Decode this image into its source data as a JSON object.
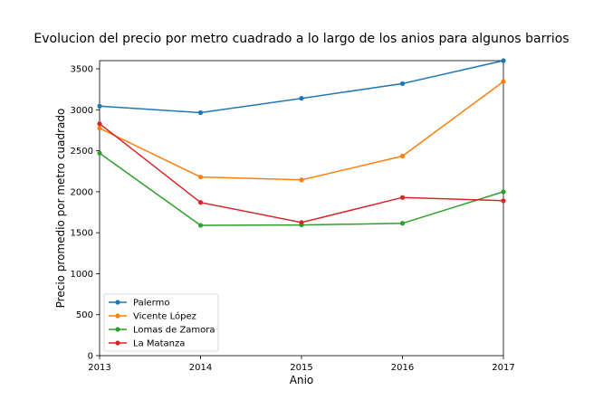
{
  "chart_data": {
    "type": "line",
    "title": "Evolucion del precio por metro cuadrado a lo largo de los anios para algunos barrios",
    "xlabel": "Anio",
    "ylabel": "Precio promedio por metro cuadrado",
    "x": [
      2013,
      2014,
      2015,
      2016,
      2017
    ],
    "xlim": [
      2013,
      2017
    ],
    "ylim": [
      0,
      3600
    ],
    "xticks": [
      "2013",
      "2014",
      "2015",
      "2016",
      "2017"
    ],
    "yticks": [
      "0",
      "500",
      "1000",
      "1500",
      "2000",
      "2500",
      "3000",
      "3500"
    ],
    "grid": false,
    "legend_position": "lower-left",
    "series": [
      {
        "name": "Palermo",
        "color": "#1f77b4",
        "values": [
          3045,
          2965,
          3140,
          3320,
          3600
        ]
      },
      {
        "name": "Vicente López",
        "color": "#ff7f0e",
        "values": [
          2775,
          2180,
          2145,
          2435,
          3345
        ]
      },
      {
        "name": "Lomas de Zamora",
        "color": "#2ca02c",
        "values": [
          2470,
          1590,
          1595,
          1615,
          2000
        ]
      },
      {
        "name": "La Matanza",
        "color": "#d62728",
        "values": [
          2830,
          1870,
          1625,
          1930,
          1890
        ]
      }
    ]
  }
}
